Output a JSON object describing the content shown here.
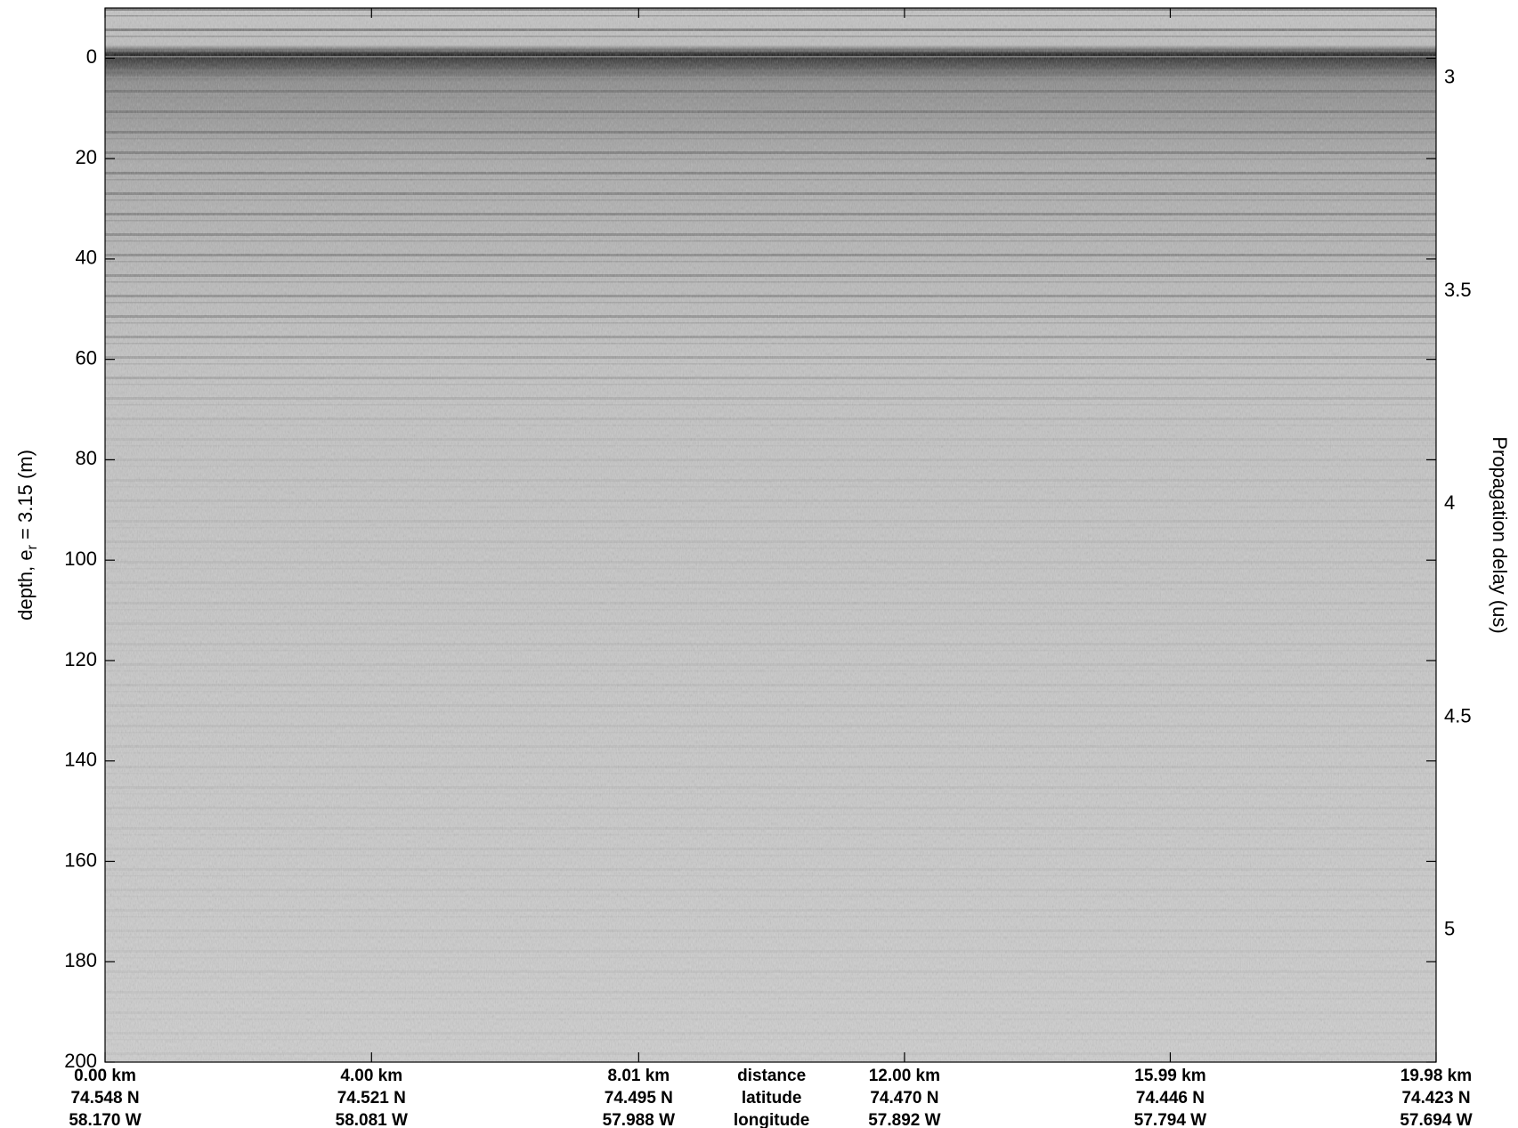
{
  "chart_data": {
    "type": "echogram",
    "ylabel": {
      "text": "depth, e",
      "sub": "r",
      "rest": " = 3.15 (m)"
    },
    "y2label": "Propagation delay (us)",
    "ylim": [
      -10,
      200
    ],
    "yticks": [
      0,
      20,
      40,
      60,
      80,
      100,
      120,
      140,
      160,
      180,
      200
    ],
    "y_inverted": true,
    "y2lim": [
      2.835,
      5.31
    ],
    "y2ticks": [
      3,
      3.5,
      4,
      4.5,
      5
    ],
    "xlim": [
      0,
      19.98
    ],
    "xticks": [
      {
        "value": 0,
        "label": "0.00 km"
      },
      {
        "value": 4.0,
        "label": "4.00 km"
      },
      {
        "value": 8.01,
        "label": "8.01 km"
      },
      {
        "value": 12.0,
        "label": "12.00 km"
      },
      {
        "value": 15.99,
        "label": "15.99 km"
      },
      {
        "value": 19.98,
        "label": "19.98 km"
      }
    ],
    "xtick_latitudes": [
      "74.548 N",
      "74.521 N",
      "74.495 N",
      "74.470 N",
      "74.446 N",
      "74.423 N"
    ],
    "xtick_longitudes": [
      "58.170 W",
      "58.081 W",
      "57.988 W",
      "57.892 W",
      "57.794 W",
      "57.694 W"
    ],
    "xlabel_rows": [
      "distance",
      "latitude",
      "longitude"
    ]
  }
}
